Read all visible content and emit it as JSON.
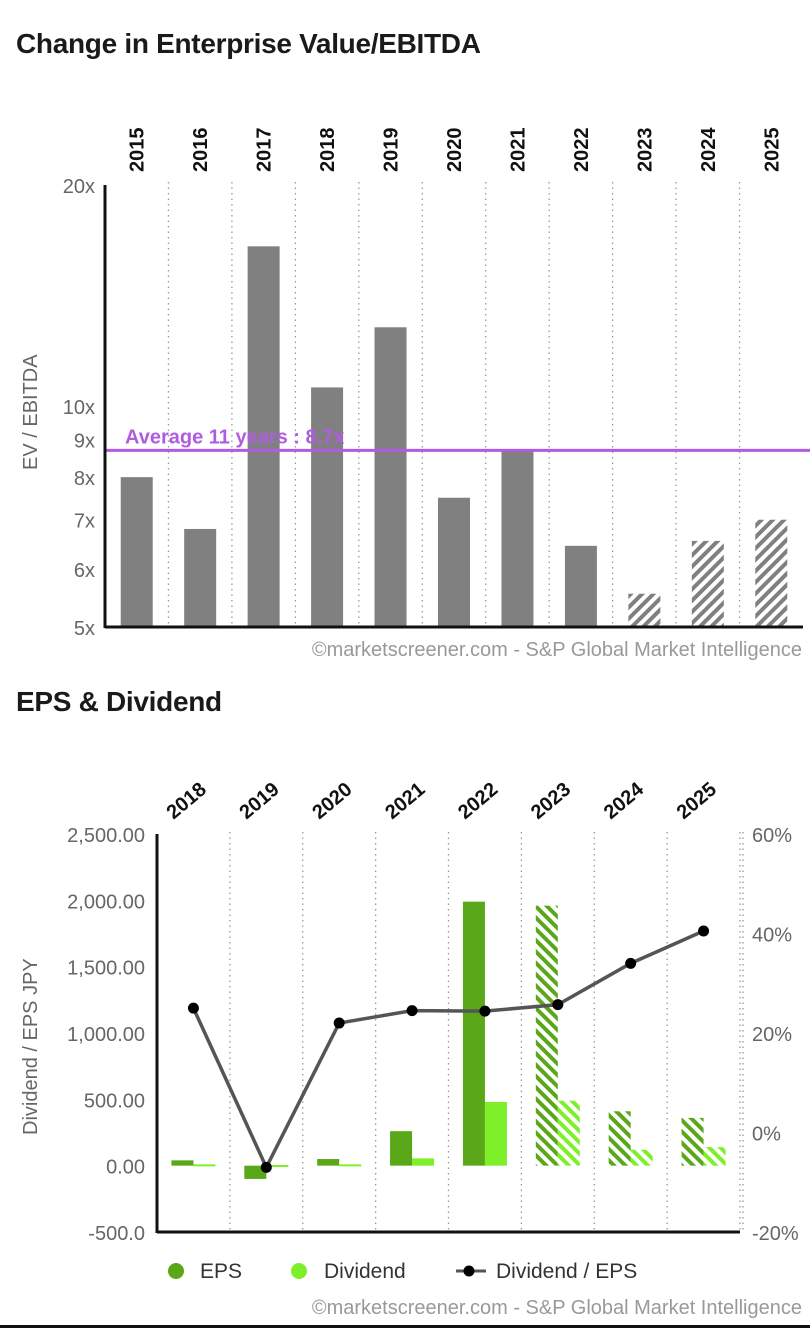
{
  "chart_data": [
    {
      "type": "bar",
      "title": "Change in Enterprise Value/EBITDA",
      "ylabel": "EV / EBITDA",
      "yscale": "log",
      "ylim": [
        5,
        20
      ],
      "y_ticks": [
        "5x",
        "6x",
        "7x",
        "8x",
        "9x",
        "10x",
        "20x"
      ],
      "y_tick_values": [
        5,
        6,
        7,
        8,
        9,
        10,
        20
      ],
      "categories": [
        "2015",
        "2016",
        "2017",
        "2018",
        "2019",
        "2020",
        "2021",
        "2022",
        "2023",
        "2024",
        "2025"
      ],
      "values": [
        8.0,
        6.8,
        16.5,
        10.6,
        12.8,
        7.5,
        8.7,
        6.45,
        5.55,
        6.55,
        7.0
      ],
      "estimated": [
        false,
        false,
        false,
        false,
        false,
        false,
        false,
        false,
        true,
        true,
        true
      ],
      "average": {
        "value": 8.7,
        "label": "Average 11 years : 8.7x"
      },
      "colors": {
        "bar": "#808080",
        "average": "#b05ce0",
        "axis": "#111111"
      },
      "source": "©marketscreener.com - S&P Global Market Intelligence"
    },
    {
      "type": "bar",
      "title": "EPS & Dividend",
      "ylabel": "Dividend / EPS JPY",
      "ylim": [
        -500,
        2500
      ],
      "y_ticks": [
        "-500.0",
        "0.00",
        "500.00",
        "1,000.00",
        "1,500.00",
        "2,000.00",
        "2,500.00"
      ],
      "y_tick_values": [
        -500,
        0,
        500,
        1000,
        1500,
        2000,
        2500
      ],
      "y2lim": [
        -20,
        60
      ],
      "y2_ticks": [
        "-20%",
        "0%",
        "20%",
        "40%",
        "60%"
      ],
      "y2_tick_values": [
        -20,
        0,
        20,
        40,
        60
      ],
      "categories": [
        "2018",
        "2019",
        "2020",
        "2021",
        "2022",
        "2023",
        "2024",
        "2025"
      ],
      "series": [
        {
          "name": "EPS",
          "values": [
            40,
            -100,
            50,
            260,
            1990,
            1960,
            410,
            360
          ]
        },
        {
          "name": "Dividend",
          "values": [
            10,
            5,
            10,
            55,
            480,
            490,
            120,
            140
          ]
        },
        {
          "name": "Dividend / EPS",
          "axis": "right",
          "values": [
            25,
            -7,
            22,
            24.5,
            24.4,
            25.7,
            34,
            40.5
          ]
        }
      ],
      "estimated": [
        false,
        false,
        false,
        false,
        false,
        true,
        true,
        true
      ],
      "legend": [
        "EPS",
        "Dividend",
        "Dividend / EPS"
      ],
      "colors": {
        "eps": "#5aa81a",
        "dividend": "#7ef02a",
        "ratio_line": "#555555",
        "ratio_marker": "#000000"
      },
      "source": "©marketscreener.com - S&P Global Market Intelligence"
    }
  ]
}
